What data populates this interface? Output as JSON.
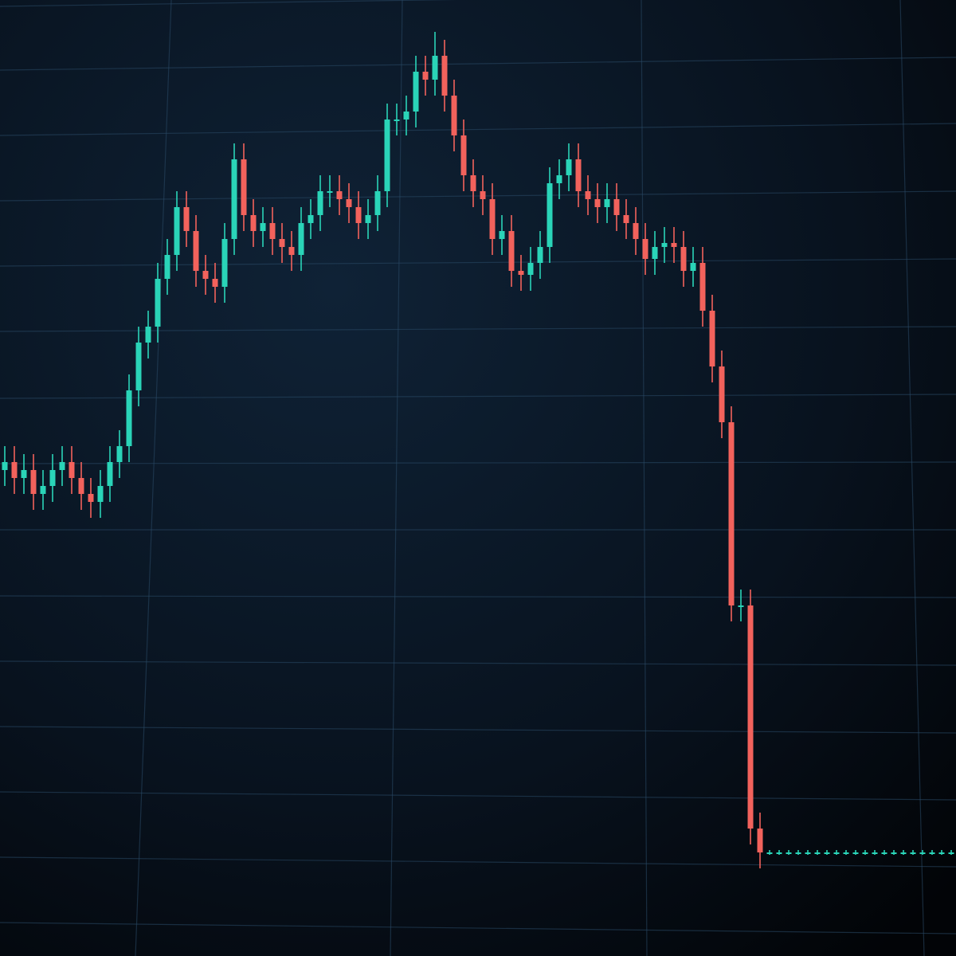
{
  "chart_data": {
    "type": "candlestick",
    "ylim": [
      0,
      120
    ],
    "grid": true,
    "up_color": "#2ad4b8",
    "down_color": "#f2625c",
    "open": [
      61,
      62,
      60,
      61,
      58,
      59,
      61,
      62,
      60,
      58,
      57,
      59,
      62,
      64,
      71,
      77,
      79,
      85,
      88,
      94,
      91,
      86,
      85,
      84,
      90,
      100,
      93,
      91,
      92,
      90,
      89,
      88,
      92,
      93,
      96,
      96,
      95,
      94,
      92,
      93,
      96,
      105,
      105,
      106,
      111,
      110,
      113,
      108,
      103,
      98,
      96,
      95,
      90,
      91,
      86,
      85.5,
      87,
      89,
      97,
      98,
      100,
      96,
      95,
      94,
      95,
      93,
      92,
      90,
      87.5,
      89,
      89.5,
      89,
      86,
      87,
      81,
      74,
      67,
      44,
      44,
      16,
      13,
      13,
      13,
      13,
      13,
      13,
      13,
      13,
      13,
      13,
      13,
      13,
      13,
      13,
      13,
      13,
      13,
      13,
      13,
      13
    ],
    "high": [
      64,
      64,
      63,
      63,
      61,
      63,
      64,
      64,
      62,
      60,
      61,
      64,
      66,
      73,
      79,
      81,
      87,
      90,
      96,
      96,
      93,
      88,
      87,
      92,
      102,
      102,
      95,
      94,
      94,
      92,
      91,
      94,
      95,
      98,
      98,
      98,
      97,
      96,
      95,
      98,
      107,
      107,
      108,
      113,
      113,
      116,
      115,
      110,
      105,
      100,
      98,
      97,
      93,
      93,
      88,
      89,
      91,
      99,
      100,
      102,
      102,
      98,
      97,
      97,
      97,
      95,
      94,
      92,
      91,
      91.5,
      91.5,
      91,
      89,
      89,
      83,
      76,
      69,
      46,
      46,
      18,
      13.3,
      13.3,
      13.3,
      13.3,
      13.3,
      13.3,
      13.3,
      13.3,
      13.3,
      13.3,
      13.3,
      13.3,
      13.3,
      13.3,
      13.3,
      13.3,
      13.3,
      13.3,
      13.3,
      13.3
    ],
    "low": [
      59,
      58,
      58,
      56,
      56,
      57,
      59,
      58,
      56,
      55,
      55,
      57,
      60,
      62,
      69,
      75,
      77,
      83,
      86,
      89,
      84,
      83,
      82,
      82,
      88,
      91,
      89,
      89,
      88,
      87,
      86,
      86,
      90,
      91,
      94,
      93,
      92,
      90,
      90,
      91,
      94,
      103,
      103,
      104,
      108,
      108,
      106,
      101,
      96,
      94,
      93,
      88,
      88,
      84,
      83.5,
      83.5,
      85,
      87,
      95,
      96,
      94,
      93,
      92,
      92,
      91,
      90,
      88,
      85.5,
      85.5,
      87,
      87,
      84,
      84,
      79,
      72,
      65,
      42,
      42,
      14,
      11,
      12.7,
      12.7,
      12.7,
      12.7,
      12.7,
      12.7,
      12.7,
      12.7,
      12.7,
      12.7,
      12.7,
      12.7,
      12.7,
      12.7,
      12.7,
      12.7,
      12.7,
      12.7,
      12.7,
      12.7
    ],
    "close": [
      62,
      60,
      61,
      58,
      59,
      61,
      62,
      60,
      58,
      57,
      59,
      62,
      64,
      71,
      77,
      79,
      85,
      88,
      94,
      91,
      86,
      85,
      84,
      90,
      100,
      93,
      91,
      92,
      90,
      89,
      88,
      92,
      93,
      96,
      96,
      95,
      94,
      92,
      93,
      96,
      105,
      105,
      106,
      111,
      110,
      113,
      108,
      103,
      98,
      96,
      95,
      90,
      91,
      86,
      85.5,
      87,
      89,
      97,
      98,
      100,
      96,
      95,
      94,
      95,
      93,
      92,
      90,
      87.5,
      89,
      89.5,
      89,
      86,
      87,
      81,
      74,
      67,
      44,
      44,
      16,
      13,
      13,
      13,
      13,
      13,
      13,
      13,
      13,
      13,
      13,
      13,
      13,
      13,
      13,
      13,
      13,
      13,
      13,
      13,
      13,
      13
    ]
  }
}
